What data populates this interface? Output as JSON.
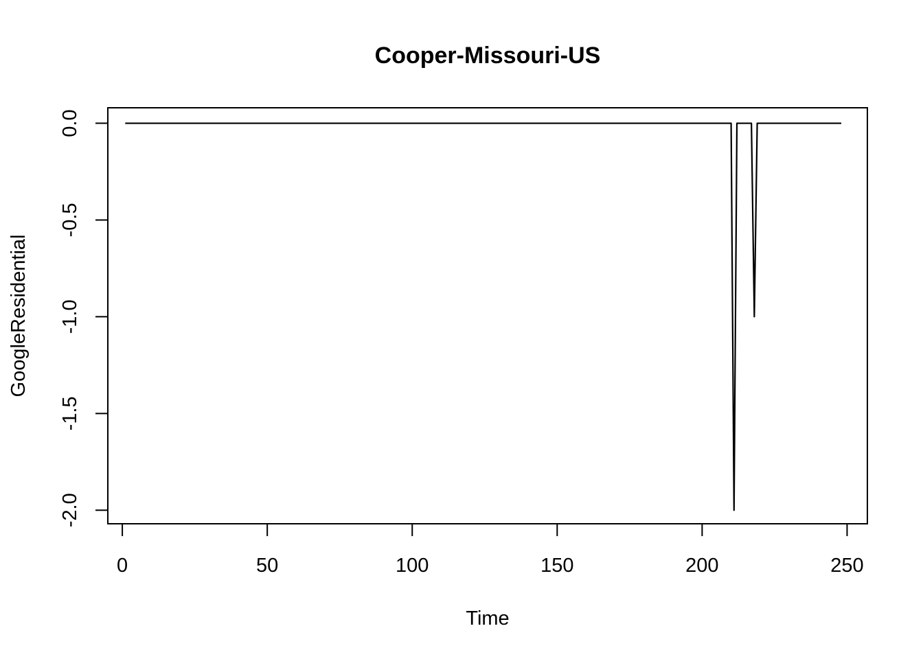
{
  "chart_data": {
    "type": "line",
    "title": "Cooper-Missouri-US",
    "xlabel": "Time",
    "ylabel": "GoogleResidential",
    "xlim": [
      -5,
      257
    ],
    "ylim": [
      -2.07,
      0.08
    ],
    "x_ticks": [
      0,
      50,
      100,
      150,
      200,
      250
    ],
    "x_tick_labels": [
      "0",
      "50",
      "100",
      "150",
      "200",
      "250"
    ],
    "y_ticks": [
      -2.0,
      -1.5,
      -1.0,
      -0.5,
      0.0
    ],
    "y_tick_labels": [
      "-2.0",
      "-1.5",
      "-1.0",
      "-0.5",
      "0.0"
    ],
    "grid": false,
    "legend": "none",
    "line_color": "#000000",
    "series": [
      {
        "points": [
          [
            1,
            0
          ],
          [
            210,
            0
          ],
          [
            211,
            -2
          ],
          [
            212,
            0
          ],
          [
            217,
            0
          ],
          [
            218,
            -1
          ],
          [
            219,
            0
          ],
          [
            248,
            0
          ]
        ]
      }
    ]
  }
}
